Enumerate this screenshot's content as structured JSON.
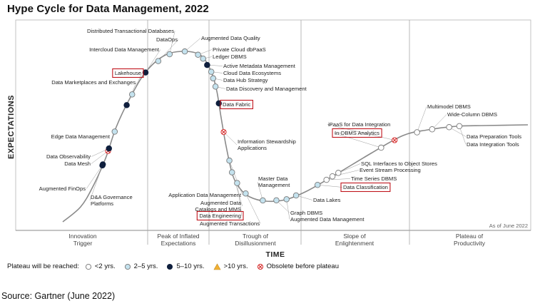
{
  "title": "Hype Cycle for Data Management, 2022",
  "source": "Source: Gartner (June 2022)",
  "chart_data": {
    "type": "scatter",
    "title": "Hype Cycle for Data Management, 2022",
    "xlabel": "TIME",
    "ylabel": "EXPECTATIONS",
    "as_of": "As of June 2022",
    "phases": [
      {
        "line1": "Innovation",
        "line2": "Trigger"
      },
      {
        "line1": "Peak of Inflated",
        "line2": "Expectations"
      },
      {
        "line1": "Trough of",
        "line2": "Disillusionment"
      },
      {
        "line1": "Slope of",
        "line2": "Enlightenment"
      },
      {
        "line1": "Plateau of",
        "line2": "Productivity"
      }
    ],
    "legend": {
      "lead": "Plateau will be reached:",
      "items": [
        {
          "key": "lt2",
          "label": "<2 yrs."
        },
        {
          "key": "2to5",
          "label": "2–5 yrs."
        },
        {
          "key": "5to10",
          "label": "5–10 yrs."
        },
        {
          "key": "gt10",
          "label": ">10 yrs."
        },
        {
          "key": "obsolete",
          "label": "Obsolete before plateau"
        }
      ]
    },
    "colors": {
      "lt2": "#ffffff",
      "2to5": "#c4e2ee",
      "5to10": "#0f1f3d",
      "gt10": "#f2b134",
      "obsolete": "#d62b2b",
      "highlight_box": "#c0141c",
      "curve": "#8a8a8a"
    },
    "points": [
      {
        "name": "Augmented FinOps",
        "t": 0.208,
        "plateau": "5to10"
      },
      {
        "name": "D&A Governance Platforms",
        "t": 0.205,
        "plateau": "5to10"
      },
      {
        "name": "Data Mesh",
        "t": 0.25,
        "plateau": "obsolete"
      },
      {
        "name": "Data Observability",
        "t": 0.258,
        "plateau": "5to10"
      },
      {
        "name": "Edge Data Management",
        "t": 0.31,
        "plateau": "2to5"
      },
      {
        "name": "Data Marketplaces and Exchanges",
        "t": 0.395,
        "plateau": "5to10"
      },
      {
        "name": "Lakehouse",
        "t": 0.43,
        "plateau": "2to5",
        "highlighted": true
      },
      {
        "name": "Intercloud Data Management",
        "t": 0.505,
        "plateau": "5to10"
      },
      {
        "name": "DataOps",
        "t": 0.555,
        "plateau": "2to5"
      },
      {
        "name": "Distributed Transactional Databases",
        "t": 0.595,
        "plateau": "2to5"
      },
      {
        "name": "Augmented Data Quality",
        "t": 0.64,
        "plateau": "2to5"
      },
      {
        "name": "Private Cloud dbPaaS",
        "t": 0.68,
        "plateau": "2to5"
      },
      {
        "name": "Ledger DBMS",
        "t": 0.7,
        "plateau": "2to5"
      },
      {
        "name": "Active Metadata Management",
        "t": 0.722,
        "plateau": "5to10"
      },
      {
        "name": "Cloud Data Ecosystems",
        "t": 0.745,
        "plateau": "2to5"
      },
      {
        "name": "Data Hub Strategy",
        "t": 0.765,
        "plateau": "2to5"
      },
      {
        "name": "Data Discovery and Management",
        "t": 0.79,
        "plateau": "2to5"
      },
      {
        "name": "Data Fabric",
        "t": 0.84,
        "plateau": "5to10",
        "highlighted": true
      },
      {
        "name": "Information Stewardship Applications",
        "t": 0.925,
        "plateau": "obsolete"
      },
      {
        "name": "Application Data Management",
        "t": 1.01,
        "plateau": "2to5"
      },
      {
        "name": "Augmented Data Catalogs and MMS",
        "t": 1.045,
        "plateau": "2to5"
      },
      {
        "name": "Data Engineering",
        "t": 1.08,
        "plateau": "2to5",
        "highlighted": true
      },
      {
        "name": "Augmented Transactions",
        "t": 1.12,
        "plateau": "2to5"
      },
      {
        "name": "Master Data Management",
        "t": 1.175,
        "plateau": "2to5"
      },
      {
        "name": "Graph DBMS",
        "t": 1.215,
        "plateau": "2to5"
      },
      {
        "name": "Augmented Data Management",
        "t": 1.245,
        "plateau": "2to5"
      },
      {
        "name": "Data Lakes",
        "t": 1.275,
        "plateau": "2to5"
      },
      {
        "name": "Data Classification",
        "t": 1.345,
        "plateau": "2to5",
        "highlighted": true
      },
      {
        "name": "Time Series DBMS",
        "t": 1.375,
        "plateau": "lt2"
      },
      {
        "name": "Event Stream Processing",
        "t": 1.395,
        "plateau": "lt2"
      },
      {
        "name": "SQL Interfaces to Object Stores",
        "t": 1.415,
        "plateau": "lt2"
      },
      {
        "name": "In-DBMS Analytics",
        "t": 1.56,
        "plateau": "lt2",
        "highlighted": true
      },
      {
        "name": "iPaaS for Data Integration",
        "t": 1.605,
        "plateau": "obsolete"
      },
      {
        "name": "Multimodel DBMS",
        "t": 1.675,
        "plateau": "lt2"
      },
      {
        "name": "Wide-Column DBMS",
        "t": 1.72,
        "plateau": "lt2"
      },
      {
        "name": "Data Preparation Tools",
        "t": 1.77,
        "plateau": "lt2"
      },
      {
        "name": "Data Integration Tools",
        "t": 1.8,
        "plateau": "lt2"
      }
    ]
  }
}
